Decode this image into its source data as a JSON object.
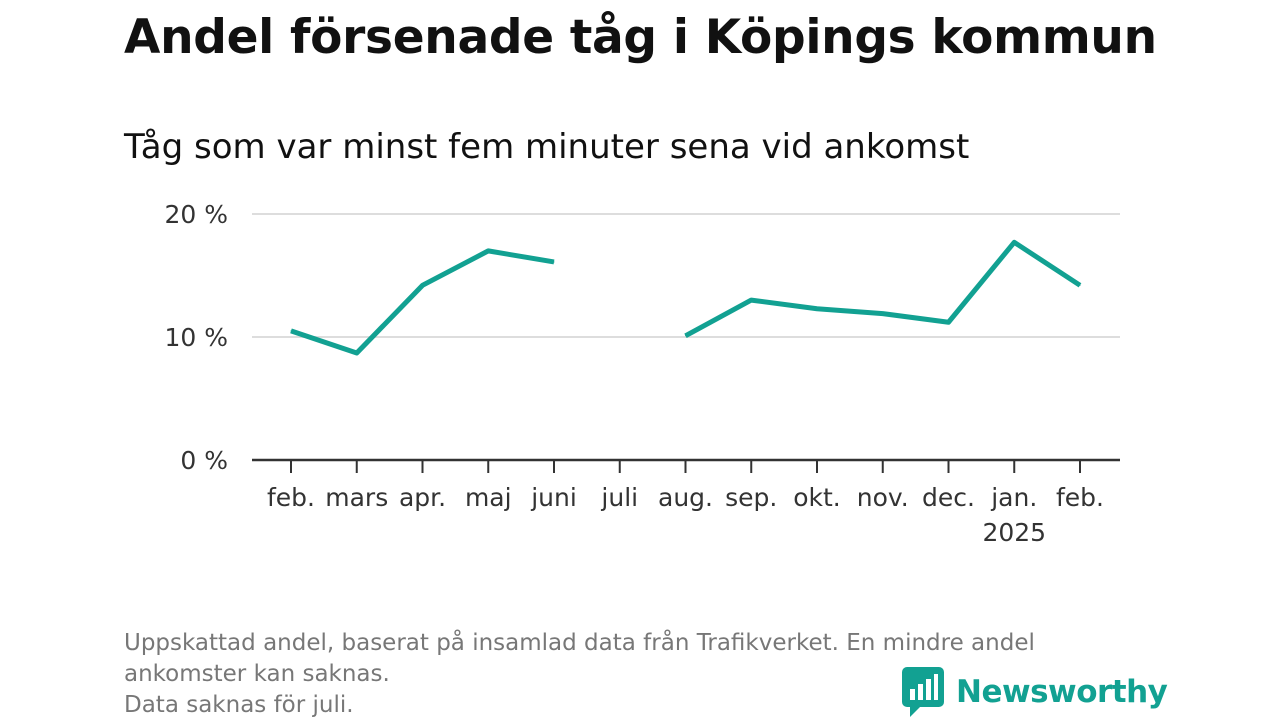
{
  "title": "Andel försenade tåg i Köpings kommun",
  "subtitle": "Tåg som var minst fem minuter sena vid ankomst",
  "footnote": [
    "Uppskattad andel, baserat på insamlad data från Trafikverket. En mindre andel",
    "ankomster kan saknas.",
    "Data saknas för juli."
  ],
  "logo": {
    "text": "Newsworthy",
    "icon": "bar-chart-speech-bubble-icon"
  },
  "colors": {
    "line": "#12a192",
    "grid": "#dddddd",
    "axis": "#333333",
    "footnote": "#777777"
  },
  "chart_data": {
    "type": "line",
    "title": "Andel försenade tåg i Köpings kommun",
    "subtitle": "Tåg som var minst fem minuter sena vid ankomst",
    "categories": [
      "feb.",
      "mars",
      "apr.",
      "maj",
      "juni",
      "juli",
      "aug.",
      "sep.",
      "okt.",
      "nov.",
      "dec.",
      "jan.",
      "feb."
    ],
    "category_sublabels": [
      "",
      "",
      "",
      "",
      "",
      "",
      "",
      "",
      "",
      "",
      "",
      "2025",
      ""
    ],
    "series": [
      {
        "values": [
          10.5,
          8.7,
          14.2,
          17.0,
          16.1,
          null,
          10.1,
          13.0,
          12.3,
          11.9,
          11.2,
          17.7,
          14.2
        ]
      }
    ],
    "ylim": [
      0,
      20
    ],
    "yticks": [
      0,
      10,
      20
    ],
    "ytick_labels": [
      "0 %",
      "10 %",
      "20 %"
    ],
    "grid": true,
    "xlabel": "",
    "ylabel": ""
  }
}
